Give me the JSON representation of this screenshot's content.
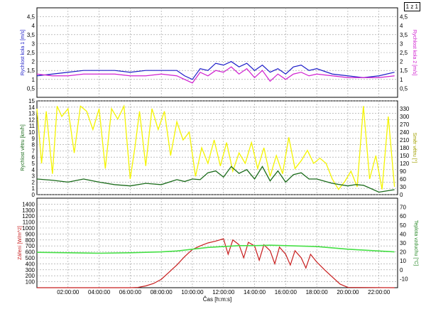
{
  "page_label": "1 z 1",
  "chart_data": [
    {
      "type": "line",
      "ylabel_left": "Rychlost kola 1 [m/s]",
      "ylabel_right": "Rychlost kola 2 [m/s]",
      "ylim": [
        0,
        5
      ],
      "yticks": [
        "0,5",
        "1",
        "1,5",
        "2",
        "2,5",
        "3",
        "3,5",
        "4",
        "4,5"
      ],
      "grid": true,
      "series": [
        {
          "name": "Rychlost kola 1 [m/s]",
          "color": "#1c1cc8",
          "axis": "left",
          "x": [
            0,
            1,
            2,
            3,
            4,
            5,
            6,
            7,
            8,
            9,
            9.5,
            10,
            10.5,
            11,
            11.5,
            12,
            12.5,
            13,
            13.5,
            14,
            14.5,
            15,
            15.5,
            16,
            16.5,
            17,
            17.5,
            18,
            19,
            20,
            21,
            22,
            23
          ],
          "y": [
            1.2,
            1.3,
            1.4,
            1.5,
            1.5,
            1.5,
            1.4,
            1.5,
            1.5,
            1.5,
            1.2,
            1.0,
            1.6,
            1.5,
            1.9,
            1.8,
            2.0,
            1.7,
            1.9,
            1.5,
            1.8,
            1.4,
            1.6,
            1.3,
            1.7,
            1.8,
            1.5,
            1.6,
            1.3,
            1.2,
            1.1,
            1.2,
            1.4
          ]
        },
        {
          "name": "Rychlost kola 2 [m/s]",
          "color": "#d020d0",
          "axis": "right",
          "x": [
            0,
            1,
            2,
            3,
            4,
            5,
            6,
            7,
            8,
            9,
            9.5,
            10,
            10.5,
            11,
            11.5,
            12,
            12.5,
            13,
            13.5,
            14,
            14.5,
            15,
            15.5,
            16,
            16.5,
            17,
            17.5,
            18,
            19,
            20,
            21,
            22,
            23
          ],
          "y": [
            1.3,
            1.2,
            1.2,
            1.3,
            1.3,
            1.3,
            1.2,
            1.2,
            1.3,
            1.2,
            1.0,
            0.8,
            1.4,
            1.2,
            1.5,
            1.4,
            1.7,
            1.3,
            1.6,
            1.1,
            1.5,
            0.9,
            1.3,
            1.0,
            1.3,
            1.4,
            1.2,
            1.3,
            1.2,
            1.1,
            1.1,
            1.1,
            1.2
          ]
        }
      ]
    },
    {
      "type": "line",
      "ylabel_left": "Rychlost větru [km/h]",
      "ylabel_right": "Směr větru [°]",
      "ylim_left": [
        0,
        15
      ],
      "ylim_right": [
        0,
        360
      ],
      "yticks_left": [
        "0",
        "1",
        "2",
        "3",
        "4",
        "5",
        "6",
        "7",
        "8",
        "9",
        "10",
        "11",
        "12",
        "13",
        "14",
        "15"
      ],
      "yticks_right": [
        "0",
        "30",
        "60",
        "90",
        "120",
        "150",
        "180",
        "210",
        "240",
        "270",
        "300",
        "330"
      ],
      "grid": true,
      "series": [
        {
          "name": "Rychlost větru [km/h]",
          "color": "#1a6b1a",
          "axis": "left",
          "x": [
            0,
            1,
            2,
            3,
            4,
            5,
            6,
            7,
            8,
            9,
            9.5,
            10,
            10.5,
            11,
            11.5,
            12,
            12.5,
            13,
            13.5,
            14,
            14.5,
            15,
            15.5,
            16,
            16.5,
            17,
            17.5,
            18,
            19,
            20,
            20.5,
            21,
            22,
            23
          ],
          "y": [
            2.5,
            2.3,
            2.0,
            2.5,
            2.0,
            1.6,
            1.4,
            1.8,
            1.6,
            2.4,
            2.1,
            2.5,
            2.4,
            3.5,
            3.8,
            2.8,
            4.5,
            3.4,
            4.0,
            2.5,
            4.5,
            2.2,
            3.8,
            2.0,
            3.2,
            3.5,
            2.5,
            2.5,
            1.8,
            1.4,
            1.6,
            1.5,
            0.4,
            0.8
          ]
        },
        {
          "name": "Směr větru [°]",
          "color": "#f4f400",
          "axis": "right",
          "x": [
            0,
            0.3,
            0.6,
            1,
            1.3,
            1.6,
            2,
            2.4,
            2.8,
            3.2,
            3.6,
            4,
            4.4,
            4.8,
            5.2,
            5.6,
            6,
            6.3,
            6.6,
            7,
            7.4,
            7.8,
            8.2,
            8.6,
            9,
            9.4,
            9.8,
            10.2,
            10.6,
            11,
            11.4,
            11.8,
            12.2,
            12.6,
            13,
            13.4,
            13.8,
            14.2,
            14.6,
            15,
            15.4,
            15.8,
            16.2,
            16.6,
            17,
            17.4,
            17.8,
            18.2,
            18.6,
            19,
            19.4,
            19.8,
            20.2,
            20.6,
            21,
            21.4,
            21.8,
            22.2,
            22.6,
            23
          ],
          "y": [
            330,
            120,
            320,
            80,
            340,
            300,
            330,
            160,
            340,
            320,
            250,
            330,
            100,
            330,
            290,
            340,
            60,
            180,
            320,
            110,
            330,
            250,
            320,
            150,
            280,
            210,
            240,
            70,
            180,
            120,
            210,
            110,
            200,
            90,
            160,
            120,
            200,
            100,
            180,
            70,
            150,
            80,
            220,
            100,
            130,
            170,
            120,
            140,
            120,
            60,
            20,
            50,
            90,
            30,
            340,
            60,
            150,
            20,
            300,
            30
          ]
        }
      ]
    },
    {
      "type": "line",
      "ylabel_left": "Záření [W/m^2]",
      "ylabel_right": "Teplota vzduchu [°C]",
      "ylim_left": [
        0,
        1500
      ],
      "ylim_right": [
        -20,
        80
      ],
      "yticks_left": [
        "100",
        "200",
        "300",
        "400",
        "500",
        "600",
        "700",
        "800",
        "900",
        "1000",
        "1100",
        "1200",
        "1300",
        "1400"
      ],
      "yticks_right": [
        "-10",
        "0",
        "10",
        "20",
        "30",
        "40",
        "50",
        "60",
        "70"
      ],
      "xlabel": "Čas [h:m:s]",
      "xticks": [
        "02:00:00",
        "04:00:00",
        "06:00:00",
        "08:00:00",
        "10:00:00",
        "12:00:00",
        "14:00:00",
        "16:00:00",
        "18:00:00",
        "20:00:00",
        "22:00:00"
      ],
      "xlim": [
        0,
        23.2
      ],
      "grid": true,
      "series": [
        {
          "name": "Záření [W/m^2]",
          "color": "#c81e1e",
          "axis": "left",
          "x": [
            0,
            6,
            6.5,
            7,
            7.5,
            8,
            8.5,
            9,
            9.5,
            10,
            10.5,
            11,
            11.5,
            12,
            12.3,
            12.6,
            13,
            13.3,
            13.6,
            14,
            14.3,
            14.6,
            15,
            15.3,
            15.6,
            16,
            16.3,
            16.6,
            17,
            17.3,
            17.6,
            18,
            18.5,
            19,
            19.5,
            20,
            23
          ],
          "y": [
            0,
            0,
            5,
            30,
            70,
            140,
            260,
            380,
            520,
            640,
            700,
            750,
            780,
            820,
            560,
            800,
            720,
            500,
            760,
            700,
            460,
            720,
            620,
            400,
            680,
            560,
            380,
            620,
            500,
            330,
            560,
            430,
            300,
            180,
            60,
            5,
            0
          ]
        },
        {
          "name": "Teplota vzduchu [°C]",
          "color": "#46e046",
          "axis": "right",
          "x": [
            0,
            2,
            4,
            6,
            8,
            9,
            10,
            11,
            12,
            13,
            14,
            15,
            16,
            17,
            18,
            19,
            20,
            21,
            22,
            23
          ],
          "y": [
            19.5,
            19,
            18.5,
            19,
            20,
            21,
            23,
            25,
            26,
            27,
            27,
            27.5,
            27,
            26.5,
            26,
            24.5,
            23,
            22,
            21,
            20
          ]
        }
      ]
    }
  ]
}
